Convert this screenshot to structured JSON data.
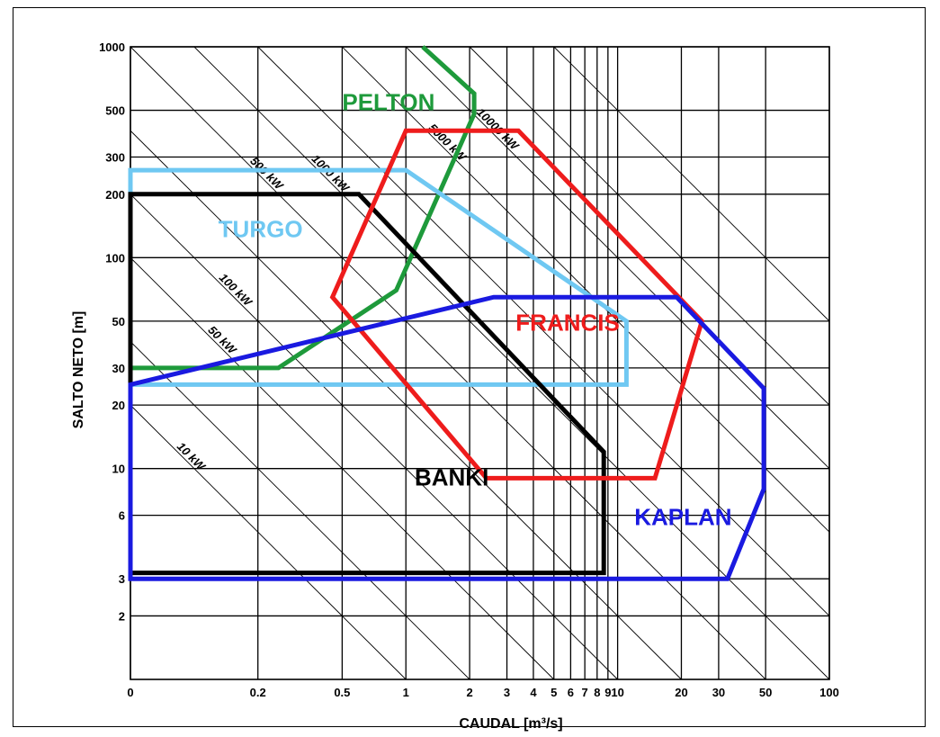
{
  "chart_data": {
    "type": "line",
    "xlabel": "CAUDAL [m³/s]",
    "ylabel": "SALTO NETO [m]",
    "x_scale": "log",
    "y_scale": "log",
    "xlim": [
      0.05,
      100
    ],
    "ylim": [
      1,
      1000
    ],
    "grid": true,
    "x_ticks": [
      {
        "v": 0.05,
        "label": "0"
      },
      {
        "v": 0.2,
        "label": "0.2"
      },
      {
        "v": 0.5,
        "label": "0.5"
      },
      {
        "v": 1,
        "label": "1"
      },
      {
        "v": 2,
        "label": "2"
      },
      {
        "v": 3,
        "label": "3"
      },
      {
        "v": 4,
        "label": "4"
      },
      {
        "v": 5,
        "label": "5"
      },
      {
        "v": 6,
        "label": "6"
      },
      {
        "v": 7,
        "label": "7"
      },
      {
        "v": 8,
        "label": "8"
      },
      {
        "v": 9,
        "label": "9"
      },
      {
        "v": 10,
        "label": "10"
      },
      {
        "v": 20,
        "label": "20"
      },
      {
        "v": 30,
        "label": "30"
      },
      {
        "v": 50,
        "label": "50"
      },
      {
        "v": 100,
        "label": "100"
      }
    ],
    "y_ticks": [
      {
        "v": 1000,
        "label": "1000"
      },
      {
        "v": 500,
        "label": "500"
      },
      {
        "v": 300,
        "label": "300"
      },
      {
        "v": 200,
        "label": "200"
      },
      {
        "v": 100,
        "label": "100"
      },
      {
        "v": 50,
        "label": "50"
      },
      {
        "v": 30,
        "label": "30"
      },
      {
        "v": 20,
        "label": "20"
      },
      {
        "v": 10,
        "label": "10"
      },
      {
        "v": 6,
        "label": "6"
      },
      {
        "v": 3,
        "label": "3"
      },
      {
        "v": 2,
        "label": "2"
      }
    ],
    "power_lines": [
      {
        "kw": 10,
        "label": "10 kW"
      },
      {
        "kw": 50,
        "label": "50 kW"
      },
      {
        "kw": 100,
        "label": "100 kW"
      },
      {
        "kw": 500,
        "label": "500 kW"
      },
      {
        "kw": 1000,
        "label": "1000 kW"
      },
      {
        "kw": 5000,
        "label": "5000 kW"
      },
      {
        "kw": 10000,
        "label": "10000 kW"
      },
      {
        "kw": 20
      },
      {
        "kw": 200
      },
      {
        "kw": 2000
      },
      {
        "kw": 20000
      },
      {
        "kw": 50000
      }
    ],
    "series": [
      {
        "name": "PELTON",
        "color": "#1e9a3b",
        "closed": false,
        "points": [
          [
            0.05,
            30
          ],
          [
            0.25,
            30
          ],
          [
            0.9,
            70
          ],
          [
            2.1,
            480
          ],
          [
            2.1,
            600
          ],
          [
            1.2,
            1000
          ]
        ],
        "label_at": [
          0.5,
          500
        ]
      },
      {
        "name": "TURGO",
        "color": "#6fc8f2",
        "closed": true,
        "points": [
          [
            0.05,
            260
          ],
          [
            1,
            260
          ],
          [
            11,
            50
          ],
          [
            11,
            25
          ],
          [
            0.05,
            25
          ]
        ],
        "label_at": [
          0.13,
          125
        ]
      },
      {
        "name": "BANKI",
        "color": "#000000",
        "closed": true,
        "points": [
          [
            0.05,
            200
          ],
          [
            0.6,
            200
          ],
          [
            8.6,
            12
          ],
          [
            8.6,
            3.2
          ],
          [
            0.05,
            3.2
          ]
        ],
        "label_at": [
          1.1,
          8.3
        ]
      },
      {
        "name": "FRANCIS",
        "color": "#ee1c1c",
        "closed": true,
        "points": [
          [
            1,
            400
          ],
          [
            3.4,
            400
          ],
          [
            25,
            50
          ],
          [
            15,
            9
          ],
          [
            2.4,
            9
          ],
          [
            0.45,
            65
          ]
        ],
        "label_at": [
          3.3,
          45
        ]
      },
      {
        "name": "KAPLAN",
        "color": "#1a1ae0",
        "closed": true,
        "points": [
          [
            0.05,
            25
          ],
          [
            2.6,
            65
          ],
          [
            19,
            65
          ],
          [
            49,
            24
          ],
          [
            49,
            8
          ],
          [
            33,
            3
          ],
          [
            0.05,
            3
          ]
        ],
        "label_at": [
          12,
          5.4
        ]
      }
    ]
  }
}
